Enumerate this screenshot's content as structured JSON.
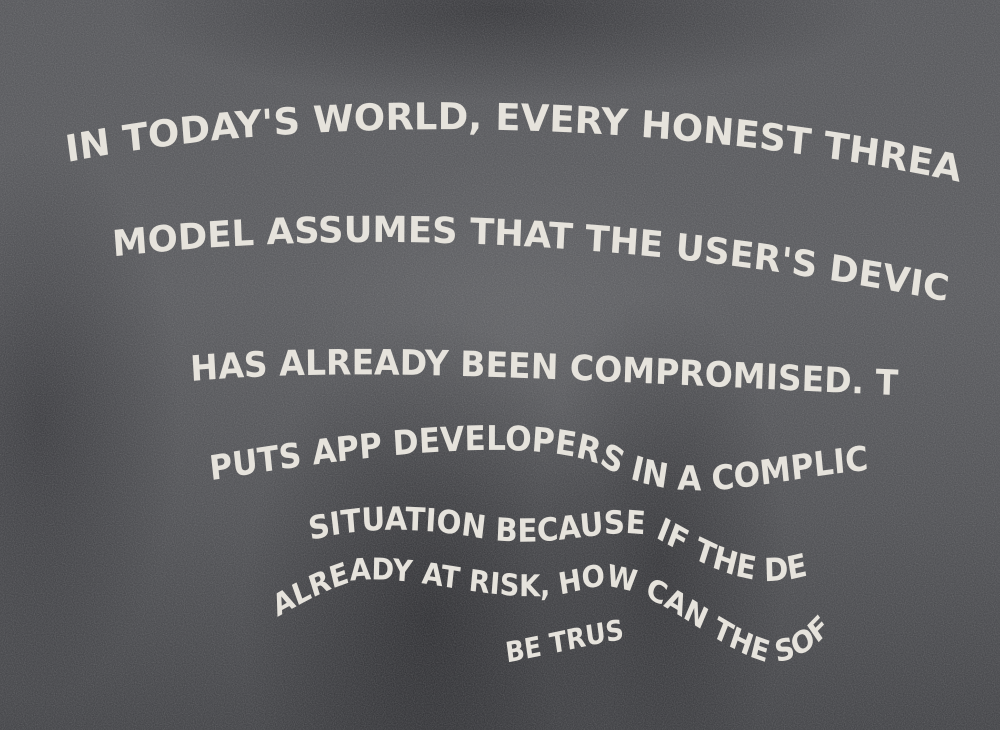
{
  "shirt_print": {
    "lines": [
      "IN TODAY'S WORLD, EVERY HONEST THREAT",
      "MODEL ASSUMES THAT THE USER'S DEVICE",
      "HAS ALREADY BEEN COMPROMISED. THIS",
      "PUTS APP DEVELOPERS IN A COMPLICATED",
      "SITUATION BECAUSE IF THE DEVICE IS",
      "ALREADY AT RISK, HOW CAN THE SOFTWARE",
      "BE TRUSTED?"
    ]
  },
  "colors": {
    "fabric": "#525357",
    "ink": "#e6e3dc",
    "shadow": "#2a2b2f"
  }
}
